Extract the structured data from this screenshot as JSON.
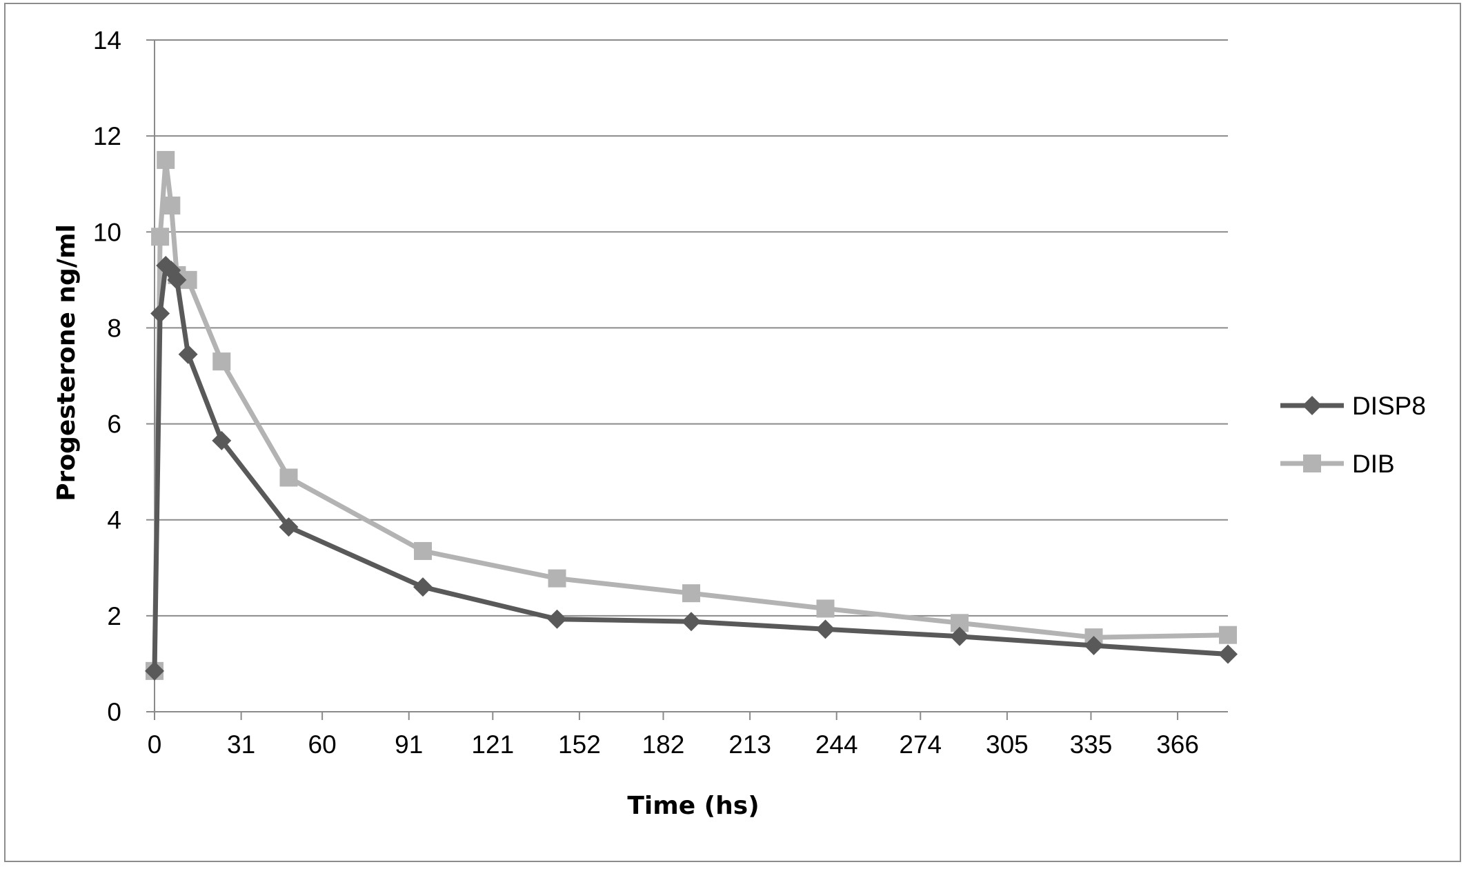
{
  "chart_data": {
    "type": "line",
    "title": "",
    "xlabel": "Time (hs)",
    "ylabel": "Progesterone ng/ml",
    "xlim": [
      0,
      384
    ],
    "ylim": [
      0,
      14
    ],
    "y_ticks": [
      0,
      2,
      4,
      6,
      8,
      10,
      12,
      14
    ],
    "x_ticks": [
      0,
      31,
      60,
      91,
      121,
      152,
      182,
      213,
      244,
      274,
      305,
      335,
      366
    ],
    "grid": true,
    "legend_position": "right",
    "series": [
      {
        "name": "DISP8",
        "color": "#595959",
        "marker": "diamond",
        "x": [
          0,
          2,
          4,
          6,
          8,
          12,
          24,
          48,
          96,
          144,
          192,
          240,
          288,
          336,
          384
        ],
        "y": [
          0.85,
          8.3,
          9.3,
          9.2,
          9.0,
          7.45,
          5.65,
          3.85,
          2.6,
          1.93,
          1.88,
          1.72,
          1.57,
          1.38,
          1.2
        ]
      },
      {
        "name": "DIB",
        "color": "#b3b3b3",
        "marker": "square",
        "x": [
          0,
          2,
          4,
          6,
          8,
          12,
          24,
          48,
          96,
          144,
          192,
          240,
          288,
          336,
          384
        ],
        "y": [
          0.85,
          9.9,
          11.5,
          10.55,
          9.1,
          9.0,
          7.3,
          4.88,
          3.35,
          2.78,
          2.47,
          2.15,
          1.85,
          1.55,
          1.6
        ]
      }
    ]
  }
}
